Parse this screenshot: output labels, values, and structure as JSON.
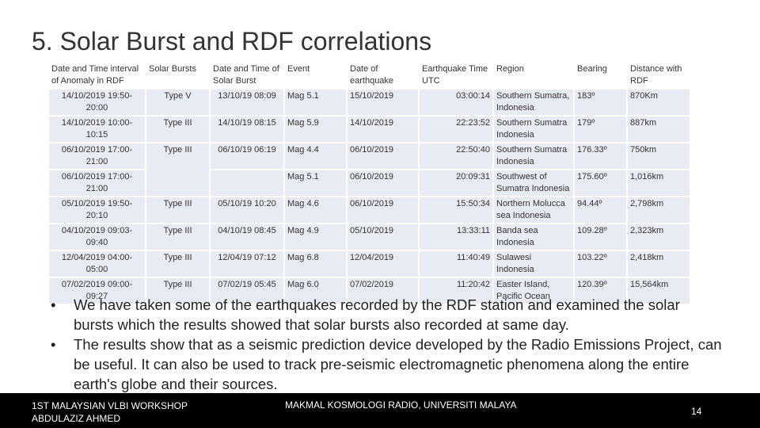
{
  "title": "5. Solar Burst and RDF correlations",
  "table": {
    "headers": [
      "Date and Time interval of Anomaly in RDF",
      "Solar Bursts",
      "Date and Time of Solar Burst",
      "Event",
      "Date of earthquake",
      "Earthquake Time UTC",
      "Region",
      "Bearing",
      "Distance with RDF"
    ],
    "rows": [
      {
        "interval": "14/10/2019 19:50-20:00",
        "burst": "Type V",
        "burst_time": "13/10/19 08:09",
        "event": "Mag 5.1",
        "eq_date": "15/10/2019",
        "eq_time": "03:00:14",
        "region": "Southern Sumatra, Indonesia",
        "bearing": "183º",
        "distance": "870Km"
      },
      {
        "interval": "14/10/2019 10:00-10:15",
        "burst": "Type III",
        "burst_time": "14/10/19 08:15",
        "event": "Mag 5.9",
        "eq_date": "14/10/2019",
        "eq_time": "22:23:52",
        "region": "Southern Sumatra Indonesia",
        "bearing": "179º",
        "distance": "887km"
      },
      {
        "interval": "06/10/2019 17:00-21:00",
        "burst": "Type III",
        "burst_time": "06/10/19 06:19",
        "event": "Mag 4.4",
        "eq_date": "06/10/2019",
        "eq_time": "22:50:40",
        "region": "Southern Sumatra Indonesia",
        "bearing": "176.33º",
        "distance": "750km"
      },
      {
        "interval": "06/10/2019 17:00-21:00",
        "burst": "",
        "burst_time": "",
        "event": "Mag 5.1",
        "eq_date": "06/10/2019",
        "eq_time": "20:09:31",
        "region": "Southwest of Sumatra Indonesia",
        "bearing": "175.60º",
        "distance": "1,016km"
      },
      {
        "interval": "05/10/2019 19:50-20:10",
        "burst": "Type III",
        "burst_time": "05/10/19 10:20",
        "event": "Mag 4.6",
        "eq_date": "06/10/2019",
        "eq_time": "15:50:34",
        "region": "Northern Molucca sea Indonesia",
        "bearing": "94.44º",
        "distance": "2,798km"
      },
      {
        "interval": "04/10/2019 09:03-09:40",
        "burst": "Type III",
        "burst_time": "04/10/19 08:45",
        "event": "Mag 4.9",
        "eq_date": "05/10/2019",
        "eq_time": "13:33:11",
        "region": "Banda sea Indonesia",
        "bearing": "109.28º",
        "distance": "2,323km"
      },
      {
        "interval": "12/04/2019 04:00-05:00",
        "burst": "Type III",
        "burst_time": "12/04/19 07:12",
        "event": "Mag 6.8",
        "eq_date": "12/04/2019",
        "eq_time": "11:40:49",
        "region": "Sulawesi Indonesia",
        "bearing": "103.22º",
        "distance": "2,418km"
      },
      {
        "interval": "07/02/2019 09:00-09:27",
        "burst": "Type III",
        "burst_time": "07/02/19 05:45",
        "event": "Mag 6.0",
        "eq_date": "07/02/2019",
        "eq_time": "11:20:42",
        "region": "Easter Island, Pacific Ocean",
        "bearing": "120.39º",
        "distance": "15,564km"
      }
    ]
  },
  "bullets": [
    "We have taken some of the earthquakes recorded by the RDF station and examined the solar bursts which the results showed that solar bursts also recorded at same day.",
    "The results show that as a seismic prediction device developed by the Radio Emissions Project, can be useful. It can also be used to track pre-seismic electromagnetic phenomena along the entire earth's globe and their sources."
  ],
  "bullet_glyph": "•",
  "footer": {
    "left_line1": "1ST MALAYSIAN VLBI WORKSHOP",
    "left_line2": "ABDULAZIZ AHMED",
    "center": "MAKMAL KOSMOLOGI RADIO, UNIVERSITI MALAYA",
    "page": "14"
  },
  "colors": {
    "cell_bg": "#e8ebf2",
    "footer_bg": "#000000",
    "text": "#333333"
  }
}
